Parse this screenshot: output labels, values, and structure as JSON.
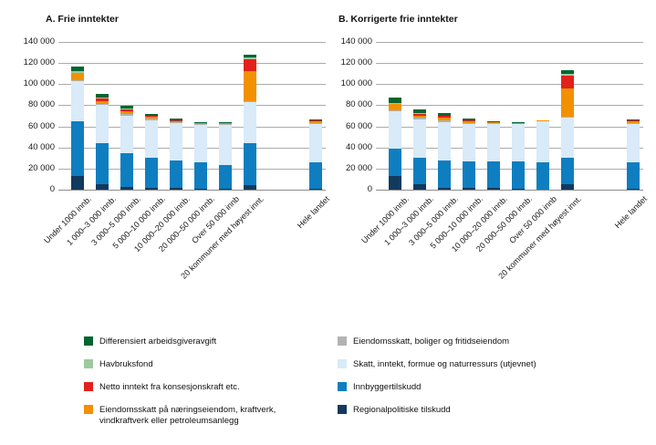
{
  "figure": {
    "background": "#ffffff",
    "text_color": "#111111",
    "gridline_color": "#ababab"
  },
  "chart_data": [
    {
      "type": "bar",
      "stacked": true,
      "title": "A. Frie inntekter",
      "ylim": [
        0,
        140000
      ],
      "ytick_step": 20000,
      "ytick_labels": [
        "0",
        "20 000",
        "40 000",
        "60 000",
        "80 000",
        "100 000",
        "120 000",
        "140 000"
      ],
      "grid": true,
      "categories": [
        "Under 1000 innb.",
        "1 000–3 000 innb.",
        "3 000–5 000 innb.",
        "5 000–10 000 innb.",
        "10 000–20 000 innb.",
        "20 000–50 000 innb.",
        "Over 50 000 innb",
        "20 kommuner med høyest innt.",
        "Hele landet"
      ],
      "series": [
        {
          "name": "Regionalpolitiske tilskudd",
          "color": "#12395e",
          "values": [
            13000,
            5500,
            2500,
            1500,
            1500,
            1000,
            500,
            4500,
            1000
          ]
        },
        {
          "name": "Innbyggertilskudd",
          "color": "#0e7ec0",
          "values": [
            52000,
            38500,
            32500,
            28500,
            26000,
            24500,
            22500,
            39500,
            25000
          ]
        },
        {
          "name": "Skatt, inntekt, formue og naturressurs (utjevnet)",
          "color": "#d9eaf8",
          "values": [
            38000,
            36000,
            35000,
            36000,
            35500,
            35500,
            38000,
            39000,
            36000
          ]
        },
        {
          "name": "Eiendomsskatt, boliger og fritidseiendom",
          "color": "#b3b3b3",
          "values": [
            1000,
            1500,
            2000,
            1500,
            1000,
            1000,
            1500,
            1000,
            1500
          ]
        },
        {
          "name": "Eiendomsskatt på næringseiendom, kraftverk, vindkraftverk eller petroleumsanlegg",
          "color": "#f29000",
          "values": [
            6500,
            2500,
            2500,
            1500,
            1500,
            1500,
            1000,
            28000,
            1500
          ]
        },
        {
          "name": "Netto inntekt fra konsesjonskraft etc.",
          "color": "#e3211c",
          "values": [
            0,
            2500,
            2000,
            1000,
            500,
            0,
            0,
            12000,
            500
          ]
        },
        {
          "name": "Havbruksfond",
          "color": "#9dc9a0",
          "values": [
            2000,
            1000,
            500,
            0,
            0,
            0,
            0,
            1000,
            0
          ]
        },
        {
          "name": "Differensiert arbeidsgiveravgift",
          "color": "#00662f",
          "values": [
            4500,
            3000,
            2500,
            1500,
            1000,
            500,
            500,
            3000,
            1000
          ]
        }
      ]
    },
    {
      "type": "bar",
      "stacked": true,
      "title": "B. Korrigerte frie inntekter",
      "ylim": [
        0,
        140000
      ],
      "ytick_step": 20000,
      "ytick_labels": [
        "0",
        "20 000",
        "40 000",
        "60 000",
        "80 000",
        "100 000",
        "120 000",
        "140 000"
      ],
      "grid": true,
      "categories": [
        "Under 1000 innb.",
        "1 000–3 000 innb.",
        "3 000–5 000 innb.",
        "5 000–10 000 innb.",
        "10 000–20 000 innb.",
        "20 000–50 000 innb.",
        "Over 50 000 innb",
        "20 kommuner med høyest innt.",
        "Hele landet"
      ],
      "series": [
        {
          "name": "Regionalpolitiske tilskudd",
          "color": "#12395e",
          "values": [
            13000,
            5000,
            2000,
            1500,
            1500,
            500,
            0,
            5000,
            1000
          ]
        },
        {
          "name": "Innbyggertilskudd",
          "color": "#0e7ec0",
          "values": [
            25500,
            25500,
            26000,
            25500,
            25500,
            26000,
            26000,
            25000,
            25000
          ]
        },
        {
          "name": "Skatt, inntekt, formue og naturressurs (utjevnet)",
          "color": "#d9eaf8",
          "values": [
            36500,
            36000,
            36000,
            35500,
            35500,
            36000,
            39000,
            38000,
            36500
          ]
        },
        {
          "name": "Eiendomsskatt, boliger og fritidseiendom",
          "color": "#b3b3b3",
          "values": [
            500,
            1500,
            1500,
            1000,
            500,
            500,
            500,
            1000,
            1000
          ]
        },
        {
          "name": "Eiendomsskatt på næringseiendom, kraftverk, vindkraftverk eller petroleumsanlegg",
          "color": "#f29000",
          "values": [
            5500,
            2000,
            2500,
            1500,
            1000,
            500,
            500,
            27000,
            1500
          ]
        },
        {
          "name": "Netto inntekt fra konsesjonskraft etc.",
          "color": "#e3211c",
          "values": [
            0,
            2500,
            2000,
            1000,
            0,
            0,
            0,
            12000,
            500
          ]
        },
        {
          "name": "Havbruksfond",
          "color": "#9dc9a0",
          "values": [
            1000,
            500,
            0,
            0,
            0,
            0,
            0,
            2000,
            0
          ]
        },
        {
          "name": "Differensiert arbeidsgiveravgift",
          "color": "#00662f",
          "values": [
            5000,
            3000,
            2500,
            1500,
            500,
            500,
            0,
            3500,
            1000
          ]
        }
      ]
    }
  ],
  "legend": {
    "position": "bottom",
    "columns": [
      {
        "items": [
          {
            "label": "Differensiert arbeidsgiveravgift",
            "color": "#00662f"
          },
          {
            "label": "Havbruksfond",
            "color": "#9dc9a0"
          },
          {
            "label": "Netto inntekt fra konsesjonskraft etc.",
            "color": "#e3211c"
          },
          {
            "label": "Eiendomsskatt på næringseiendom, kraftverk, vindkraftverk eller petroleumsanlegg",
            "color": "#f29000"
          }
        ]
      },
      {
        "items": [
          {
            "label": "Eiendomsskatt, boliger og fritidseiendom",
            "color": "#b3b3b3"
          },
          {
            "label": "Skatt, inntekt, formue og naturressurs (utjevnet)",
            "color": "#d9eaf8"
          },
          {
            "label": "Innbyggertilskudd",
            "color": "#0e7ec0"
          },
          {
            "label": "Regionalpolitiske tilskudd",
            "color": "#12395e"
          }
        ]
      }
    ]
  }
}
